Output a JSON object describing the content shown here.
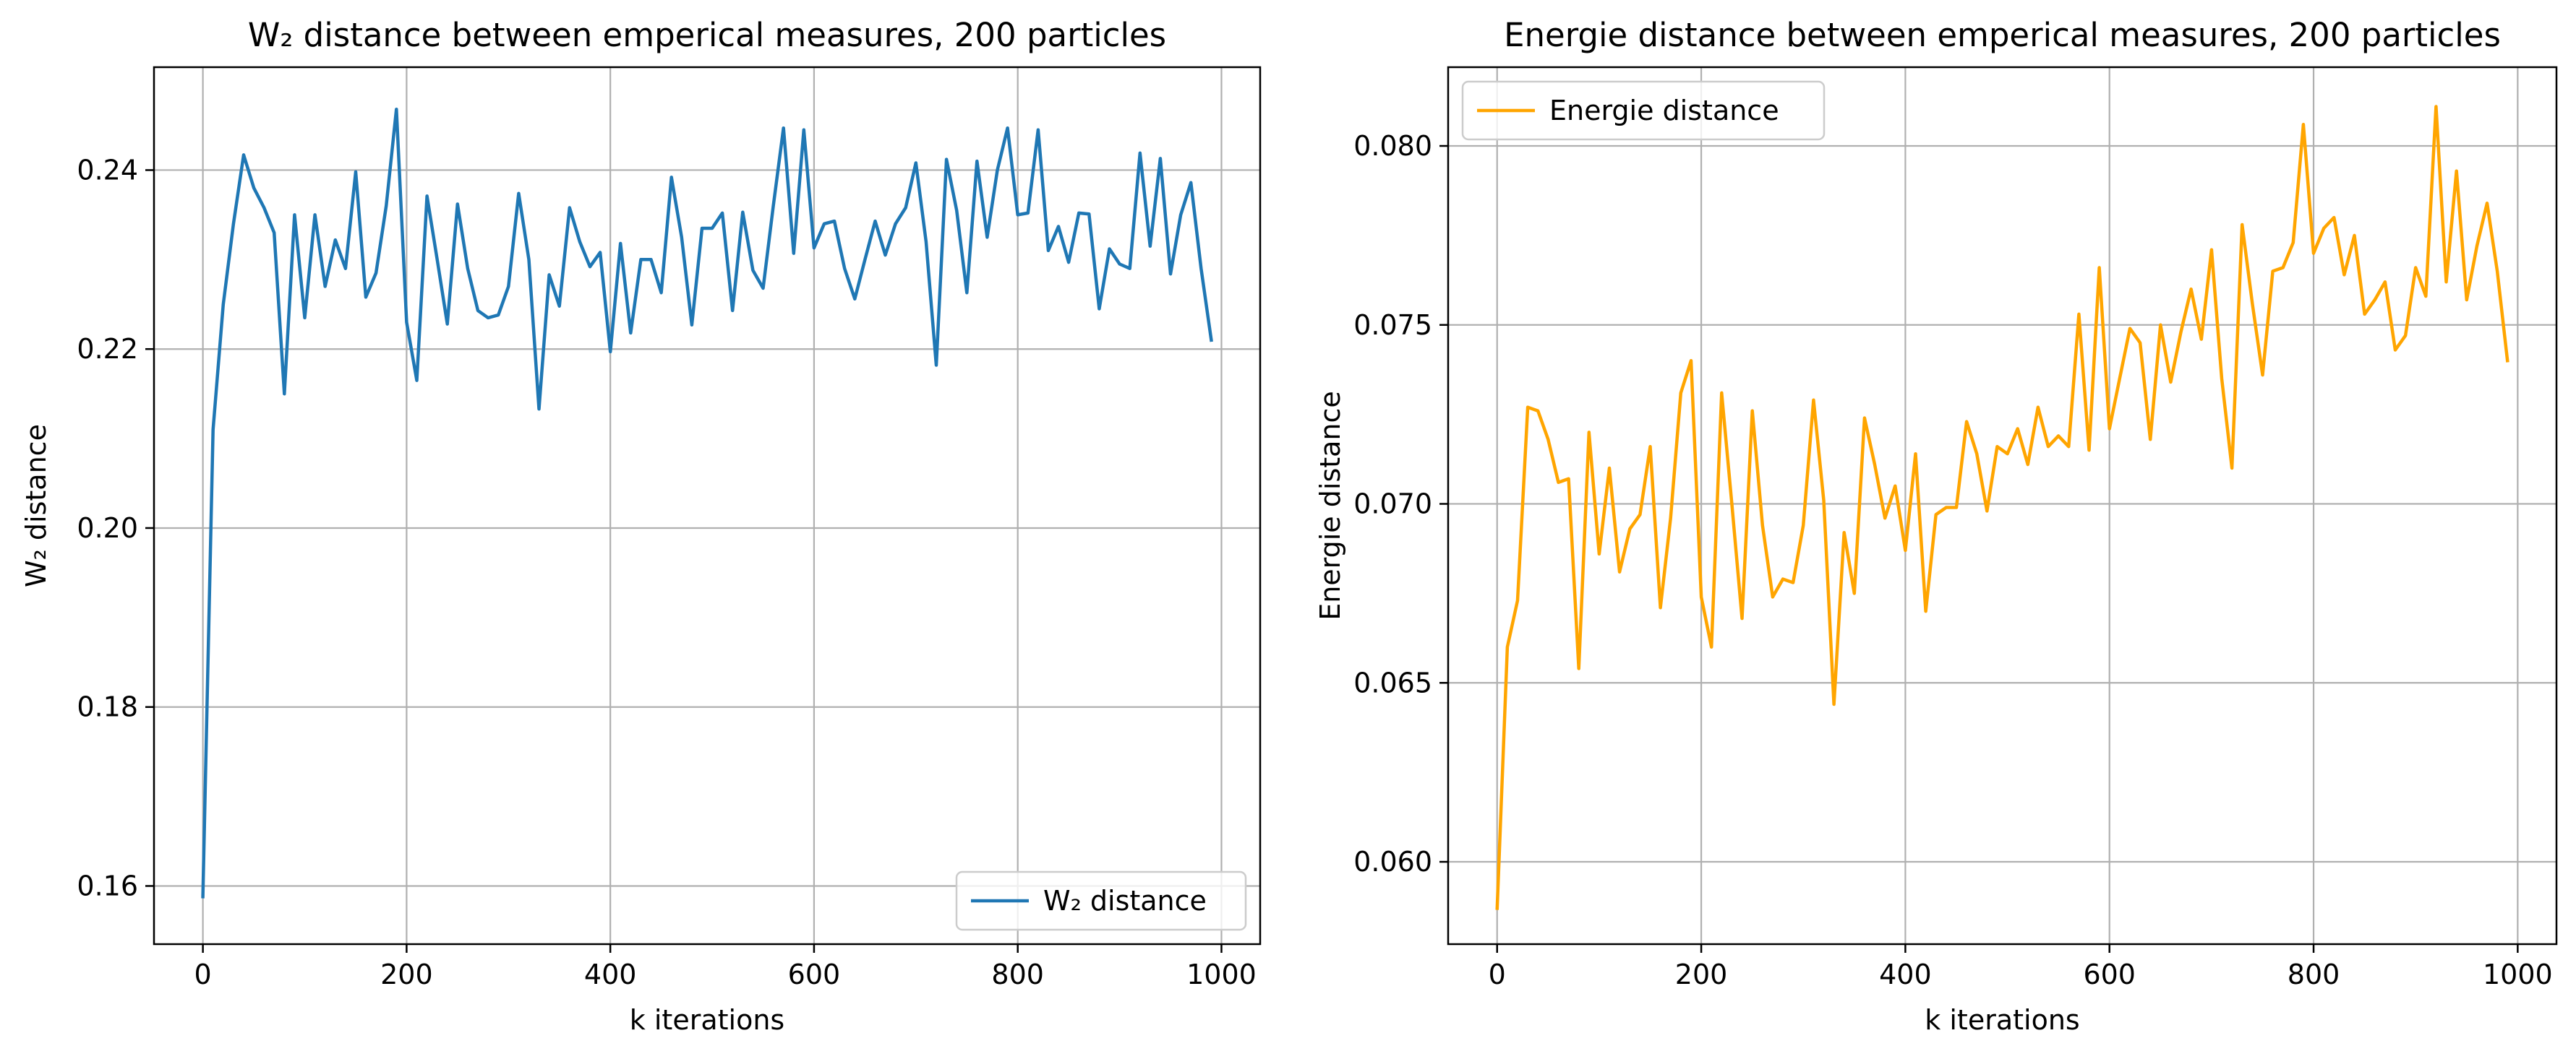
{
  "chart_data": [
    {
      "type": "line",
      "title": "W₂ distance between emperical measures, 200 particles",
      "xlabel": "k iterations",
      "ylabel": "W₂ distance",
      "xlim": [
        -48,
        1038
      ],
      "ylim": [
        0.1535,
        0.2515
      ],
      "xticks": [
        0,
        200,
        400,
        600,
        800,
        1000
      ],
      "yticks": [
        0.16,
        0.18,
        0.2,
        0.22,
        0.24
      ],
      "xtick_labels": [
        "0",
        "200",
        "400",
        "600",
        "800",
        "1000"
      ],
      "ytick_labels": [
        "0.16",
        "0.18",
        "0.20",
        "0.22",
        "0.24"
      ],
      "grid": true,
      "legend": {
        "position": "lower-right",
        "entries": [
          "W₂ distance"
        ]
      },
      "series": [
        {
          "name": "W₂ distance",
          "color": "#1f77b4",
          "x": [
            0,
            10,
            20,
            30,
            40,
            50,
            60,
            70,
            80,
            90,
            100,
            110,
            120,
            130,
            140,
            150,
            160,
            170,
            180,
            190,
            200,
            210,
            220,
            230,
            240,
            250,
            260,
            270,
            280,
            290,
            300,
            310,
            320,
            330,
            340,
            350,
            360,
            370,
            380,
            390,
            400,
            410,
            420,
            430,
            440,
            450,
            460,
            470,
            480,
            490,
            500,
            510,
            520,
            530,
            540,
            550,
            560,
            570,
            580,
            590,
            600,
            610,
            620,
            630,
            640,
            650,
            660,
            670,
            680,
            690,
            700,
            710,
            720,
            730,
            740,
            750,
            760,
            770,
            780,
            790,
            800,
            810,
            820,
            830,
            840,
            850,
            860,
            870,
            880,
            890,
            900,
            910,
            920,
            930,
            940,
            950,
            960,
            970,
            980,
            990
          ],
          "values": [
            0.1588,
            0.211,
            0.225,
            0.234,
            0.2417,
            0.238,
            0.2358,
            0.233,
            0.215,
            0.235,
            0.2235,
            0.235,
            0.227,
            0.2322,
            0.229,
            0.2398,
            0.2258,
            0.2285,
            0.236,
            0.2468,
            0.223,
            0.2165,
            0.2371,
            0.23,
            0.2228,
            0.2362,
            0.229,
            0.2243,
            0.2235,
            0.2238,
            0.227,
            0.2374,
            0.23,
            0.2133,
            0.2283,
            0.2248,
            0.2358,
            0.232,
            0.2292,
            0.2308,
            0.2197,
            0.2318,
            0.2218,
            0.23,
            0.23,
            0.2263,
            0.2392,
            0.2325,
            0.2227,
            0.2335,
            0.2335,
            0.2352,
            0.2243,
            0.2353,
            0.2288,
            0.2268,
            0.236,
            0.2447,
            0.2307,
            0.2445,
            0.2313,
            0.234,
            0.2343,
            0.229,
            0.2256,
            0.23,
            0.2343,
            0.2305,
            0.234,
            0.2358,
            0.2408,
            0.232,
            0.2182,
            0.2412,
            0.2355,
            0.2263,
            0.241,
            0.2325,
            0.24,
            0.2447,
            0.235,
            0.2352,
            0.2445,
            0.231,
            0.2337,
            0.2297,
            0.2352,
            0.2351,
            0.2245,
            0.2312,
            0.2295,
            0.229,
            0.2419,
            0.2315,
            0.2413,
            0.2284,
            0.235,
            0.2386,
            0.229,
            0.221
          ]
        }
      ]
    },
    {
      "type": "line",
      "title": "Energie distance between emperical measures, 200 particles",
      "xlabel": "k iterations",
      "ylabel": "Energie distance",
      "xlim": [
        -48,
        1038
      ],
      "ylim": [
        0.0577,
        0.0822
      ],
      "xticks": [
        0,
        200,
        400,
        600,
        800,
        1000
      ],
      "yticks": [
        0.06,
        0.065,
        0.07,
        0.075,
        0.08
      ],
      "xtick_labels": [
        "0",
        "200",
        "400",
        "600",
        "800",
        "1000"
      ],
      "ytick_labels": [
        "0.060",
        "0.065",
        "0.070",
        "0.075",
        "0.080"
      ],
      "grid": true,
      "legend": {
        "position": "upper-left",
        "entries": [
          "Energie distance"
        ]
      },
      "series": [
        {
          "name": "Energie distance",
          "color": "#ffa500",
          "x": [
            0,
            10,
            20,
            30,
            40,
            50,
            60,
            70,
            80,
            90,
            100,
            110,
            120,
            130,
            140,
            150,
            160,
            170,
            180,
            190,
            200,
            210,
            220,
            230,
            240,
            250,
            260,
            270,
            280,
            290,
            300,
            310,
            320,
            330,
            340,
            350,
            360,
            370,
            380,
            390,
            400,
            410,
            420,
            430,
            440,
            450,
            460,
            470,
            480,
            490,
            500,
            510,
            520,
            530,
            540,
            550,
            560,
            570,
            580,
            590,
            600,
            610,
            620,
            630,
            640,
            650,
            660,
            670,
            680,
            690,
            700,
            710,
            720,
            730,
            740,
            750,
            760,
            770,
            780,
            790,
            800,
            810,
            820,
            830,
            840,
            850,
            860,
            870,
            880,
            890,
            900,
            910,
            920,
            930,
            940,
            950,
            960,
            970,
            980,
            990
          ],
          "values": [
            0.0587,
            0.066,
            0.0673,
            0.0727,
            0.0726,
            0.0718,
            0.0706,
            0.0707,
            0.0654,
            0.072,
            0.0686,
            0.071,
            0.0681,
            0.0693,
            0.0697,
            0.0716,
            0.0671,
            0.0696,
            0.0731,
            0.074,
            0.0674,
            0.066,
            0.0731,
            0.07,
            0.0668,
            0.0726,
            0.0694,
            0.0674,
            0.0679,
            0.0678,
            0.0694,
            0.0729,
            0.0701,
            0.0644,
            0.0692,
            0.0675,
            0.0724,
            0.0711,
            0.0696,
            0.0705,
            0.0687,
            0.0714,
            0.067,
            0.0697,
            0.0699,
            0.0699,
            0.0723,
            0.0714,
            0.0698,
            0.0716,
            0.0714,
            0.0721,
            0.0711,
            0.0727,
            0.0716,
            0.0719,
            0.0716,
            0.0753,
            0.0715,
            0.0766,
            0.0721,
            0.0735,
            0.0749,
            0.0745,
            0.0718,
            0.075,
            0.0734,
            0.0748,
            0.076,
            0.0746,
            0.0771,
            0.0735,
            0.071,
            0.0778,
            0.0756,
            0.0736,
            0.0765,
            0.0766,
            0.0773,
            0.0806,
            0.077,
            0.0777,
            0.078,
            0.0764,
            0.0775,
            0.0753,
            0.0757,
            0.0762,
            0.0743,
            0.0747,
            0.0766,
            0.0758,
            0.0811,
            0.0762,
            0.0793,
            0.0757,
            0.0772,
            0.0784,
            0.0765,
            0.074
          ]
        }
      ]
    }
  ]
}
